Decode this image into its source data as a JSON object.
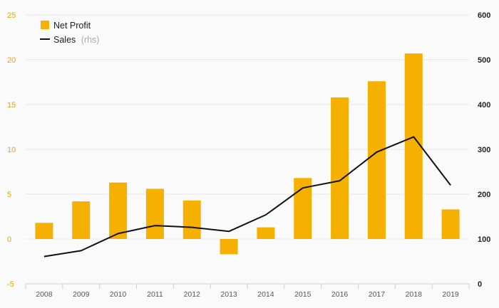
{
  "chart_data": {
    "type": "bar+line",
    "categories": [
      "2008",
      "2009",
      "2010",
      "2011",
      "2012",
      "2013",
      "2014",
      "2015",
      "2016",
      "2017",
      "2018",
      "2019"
    ],
    "series": [
      {
        "name": "Net Profit",
        "type": "bar",
        "axis": "left",
        "color": "#f5b000",
        "values": [
          1.8,
          4.2,
          6.3,
          5.6,
          4.3,
          -1.7,
          1.3,
          6.8,
          15.8,
          17.6,
          20.7,
          3.3
        ]
      },
      {
        "name": "Sales",
        "name_suffix": "(rhs)",
        "type": "line",
        "axis": "right",
        "color": "#111111",
        "values": [
          61,
          74,
          112,
          130,
          126,
          117,
          154,
          214,
          230,
          294,
          328,
          220
        ]
      }
    ],
    "y_left": {
      "min": -5,
      "max": 25,
      "ticks": [
        "-5",
        "0",
        "5",
        "10",
        "15",
        "20",
        "25"
      ]
    },
    "y_right": {
      "min": 0,
      "max": 600,
      "ticks": [
        "0",
        "100",
        "200",
        "300",
        "400",
        "500",
        "600"
      ]
    },
    "grid": true,
    "legend_position": "top-left",
    "colors": {
      "left_ticks": "#e6a800",
      "right_ticks": "#222222",
      "grid": "#e6e6e6"
    }
  }
}
